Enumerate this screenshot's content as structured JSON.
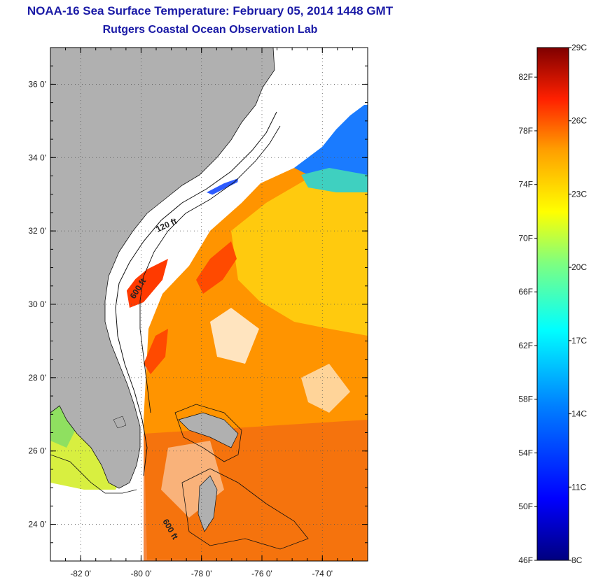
{
  "title": "NOAA-16 Sea Surface Temperature:  February 05, 2014 1448 GMT",
  "subtitle": "Rutgers Coastal Ocean Observation Lab",
  "map": {
    "lat_labels": [
      "36 0'",
      "34 0'",
      "32 0'",
      "30 0'",
      "28 0'",
      "26 0'",
      "24 0'"
    ],
    "lat_values": [
      36,
      34,
      32,
      30,
      28,
      26,
      24
    ],
    "lon_labels": [
      "-82 0'",
      "-80 0'",
      "-78 0'",
      "-76 0'",
      "-74 0'"
    ],
    "lon_values": [
      -82,
      -80,
      -78,
      -76,
      -74
    ],
    "lon_range": [
      -83,
      -72.5
    ],
    "lat_range": [
      23,
      37
    ],
    "isobaths": [
      {
        "label": "120 ft"
      },
      {
        "label": "600 ft"
      },
      {
        "label": "600 ft"
      }
    ],
    "land_color": "#b0b0b0"
  },
  "colorbar": {
    "f_labels": [
      "82F",
      "78F",
      "74F",
      "70F",
      "66F",
      "62F",
      "58F",
      "54F",
      "50F",
      "46F"
    ],
    "c_labels": [
      "29C",
      "26C",
      "23C",
      "20C",
      "17C",
      "14C",
      "11C",
      "8C"
    ],
    "colors": [
      "#00007f",
      "#0000ff",
      "#007fff",
      "#00ffff",
      "#7fff7f",
      "#ffff00",
      "#ff7f00",
      "#ff0000",
      "#7f0000"
    ]
  }
}
